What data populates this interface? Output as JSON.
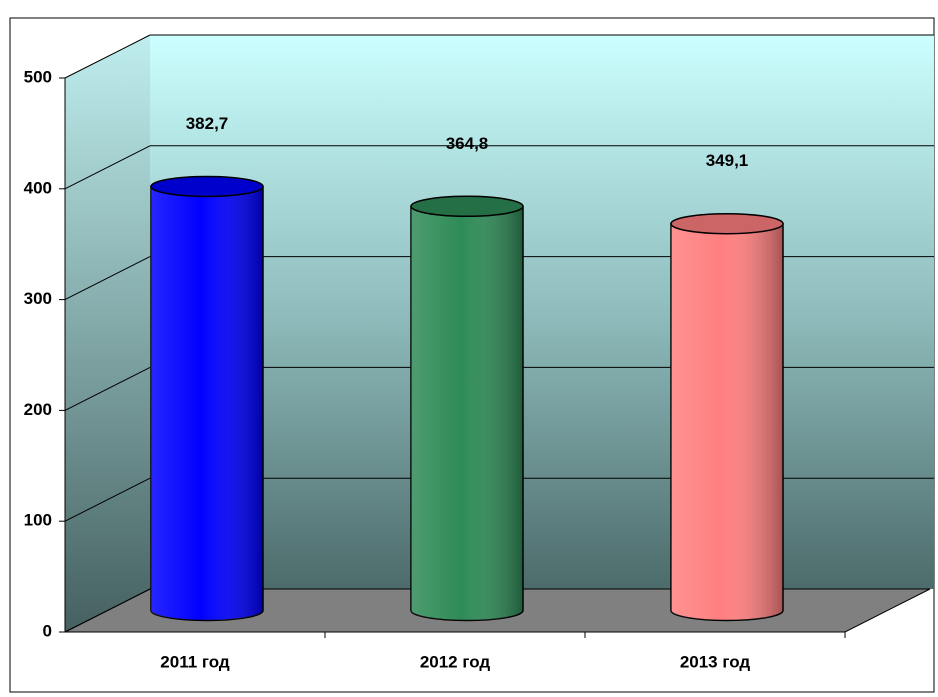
{
  "chart_data": {
    "type": "bar",
    "categories": [
      "2011 год",
      "2012 год",
      "2013 год"
    ],
    "values": [
      382.7,
      364.8,
      349.1
    ],
    "value_labels": [
      "382,7",
      "364,8",
      "349,1"
    ],
    "colors": [
      "#0000ff",
      "#2e8b57",
      "#ff7f7f"
    ],
    "ylim": [
      0,
      500
    ],
    "yticks": [
      0,
      100,
      200,
      300,
      400,
      500
    ],
    "grid": true
  }
}
